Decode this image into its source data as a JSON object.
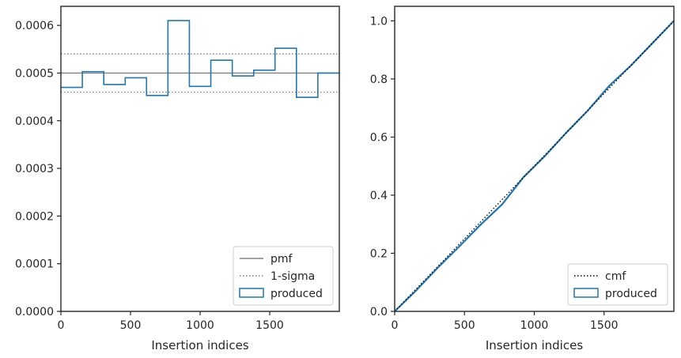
{
  "chart_data": [
    {
      "type": "step",
      "xlabel": "Insertion indices",
      "ylabel": "",
      "xlim": [
        0,
        2000
      ],
      "ylim": [
        0,
        0.00064
      ],
      "xticks": [
        0,
        500,
        1000,
        1500
      ],
      "xtick_labels": [
        "0",
        "500",
        "1000",
        "1500"
      ],
      "yticks": [
        0,
        0.0001,
        0.0002,
        0.0003,
        0.0004,
        0.0005,
        0.0006
      ],
      "ytick_labels": [
        "0.0000",
        "0.0001",
        "0.0002",
        "0.0003",
        "0.0004",
        "0.0005",
        "0.0006"
      ],
      "pmf": 0.0005,
      "sigma_band": [
        0.00046,
        0.00054
      ],
      "bin_edges": [
        0,
        154,
        308,
        462,
        615,
        769,
        923,
        1077,
        1231,
        1385,
        1538,
        1692,
        1846,
        2000
      ],
      "produced": [
        0.00047,
        0.000503,
        0.000476,
        0.00049,
        0.000453,
        0.00061,
        0.000472,
        0.000527,
        0.000494,
        0.000506,
        0.000552,
        0.000449,
        0.0005
      ],
      "legend": {
        "position": "lower right",
        "entries": [
          {
            "label": "pmf",
            "style": "solid",
            "color": "#808080"
          },
          {
            "label": "1-sigma",
            "style": "dotted",
            "color": "#808080"
          },
          {
            "label": "produced",
            "style": "patch",
            "color": "#1f77b4"
          }
        ]
      }
    },
    {
      "type": "line",
      "xlabel": "Insertion indices",
      "ylabel": "",
      "xlim": [
        0,
        2000
      ],
      "ylim": [
        0,
        1.05
      ],
      "xticks": [
        0,
        500,
        1000,
        1500
      ],
      "xtick_labels": [
        "0",
        "500",
        "1000",
        "1500"
      ],
      "yticks": [
        0,
        0.2,
        0.4,
        0.6,
        0.8,
        1.0
      ],
      "ytick_labels": [
        "0.0",
        "0.2",
        "0.4",
        "0.6",
        "0.8",
        "1.0"
      ],
      "cmf": {
        "x": [
          0,
          2000
        ],
        "y": [
          0,
          1.0
        ]
      },
      "produced": {
        "x": [
          0,
          154,
          308,
          462,
          615,
          769,
          923,
          1077,
          1231,
          1385,
          1538,
          1692,
          1846,
          2000
        ],
        "y": [
          0,
          0.072,
          0.15,
          0.223,
          0.298,
          0.368,
          0.462,
          0.535,
          0.616,
          0.692,
          0.777,
          0.846,
          0.923,
          1.0
        ]
      },
      "legend": {
        "position": "lower right",
        "entries": [
          {
            "label": "cmf",
            "style": "dotted",
            "color": "#000000"
          },
          {
            "label": "produced",
            "style": "patch",
            "color": "#1f77b4"
          }
        ]
      }
    }
  ],
  "colors": {
    "produced": "#1f77b4",
    "pmf": "#808080",
    "cmf": "#000000",
    "axes": "#262626"
  }
}
